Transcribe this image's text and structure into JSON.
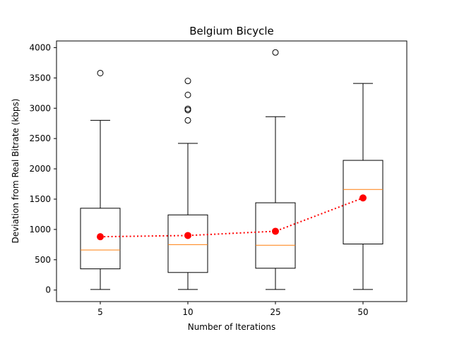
{
  "chart_data": {
    "type": "box",
    "title": "Belgium Bicycle",
    "xlabel": "Number of Iterations",
    "ylabel": "Deviation from Real Bitrate (kbps)",
    "categories": [
      "5",
      "10",
      "25",
      "50"
    ],
    "ylim": [
      -190,
      4110
    ],
    "yticks": [
      0,
      500,
      1000,
      1500,
      2000,
      2500,
      3000,
      3500,
      4000
    ],
    "boxes": [
      {
        "category": "5",
        "whisker_low": 10,
        "q1": 350,
        "median": 660,
        "q3": 1350,
        "whisker_high": 2800,
        "outliers": [
          3580
        ]
      },
      {
        "category": "10",
        "whisker_low": 10,
        "q1": 290,
        "median": 750,
        "q3": 1240,
        "whisker_high": 2420,
        "outliers": [
          2800,
          2970,
          2990,
          3220,
          3450
        ]
      },
      {
        "category": "25",
        "whisker_low": 10,
        "q1": 360,
        "median": 740,
        "q3": 1440,
        "whisker_high": 2860,
        "outliers": [
          3920
        ]
      },
      {
        "category": "50",
        "whisker_low": 10,
        "q1": 760,
        "median": 1660,
        "q3": 2140,
        "whisker_high": 3410,
        "outliers": []
      }
    ],
    "mean_series": {
      "values": [
        880,
        900,
        970,
        1520
      ],
      "color": "#ff0000",
      "linestyle": "dotted",
      "marker": "circle"
    },
    "colors": {
      "box": "#000000",
      "median": "#ff7f0e",
      "mean": "#ff0000"
    },
    "grid": false,
    "legend": "none"
  }
}
